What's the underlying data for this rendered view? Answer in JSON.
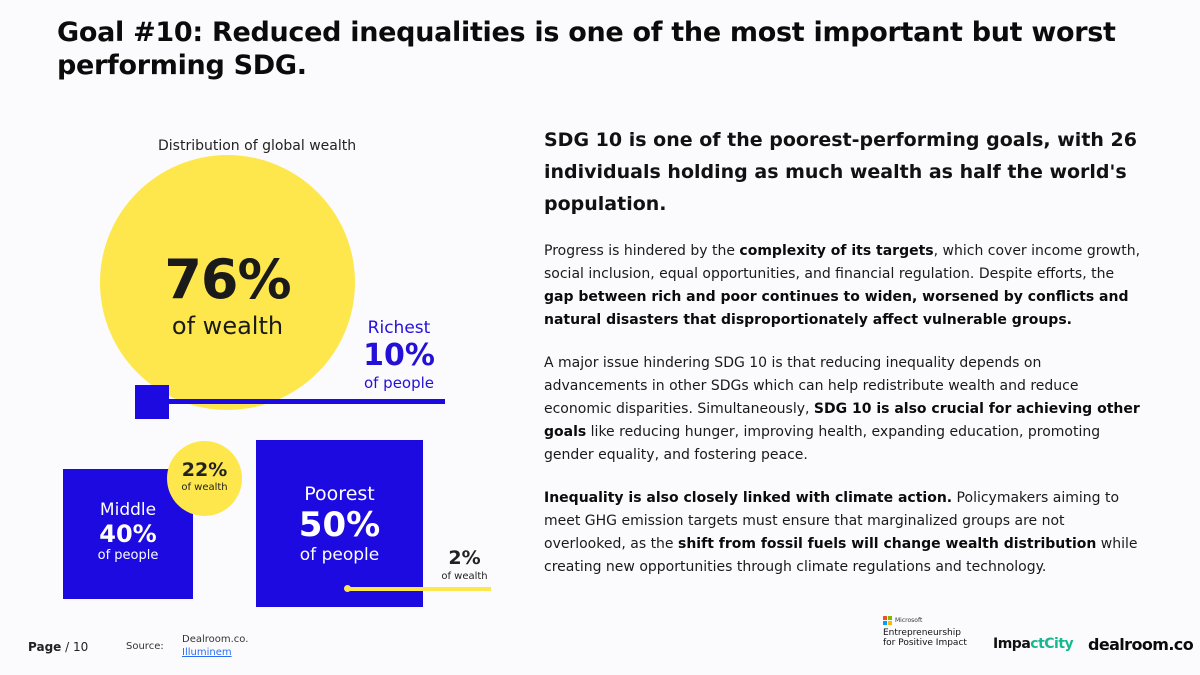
{
  "title": "Goal #10: Reduced inequalities is one of the most important but worst performing SDG.",
  "chart_data": {
    "type": "bubble-proportion",
    "title": "Distribution of global wealth",
    "groups": [
      {
        "name": "Richest",
        "people_pct": "10%",
        "people_label": "of people",
        "wealth_pct": "76%",
        "wealth_label": "of wealth"
      },
      {
        "name": "Middle",
        "people_pct": "40%",
        "people_label": "of people",
        "wealth_pct": "22%",
        "wealth_label": "of wealth"
      },
      {
        "name": "Poorest",
        "people_pct": "50%",
        "people_label": "of people",
        "wealth_pct": "2%",
        "wealth_label": "of wealth"
      }
    ],
    "colors": {
      "people": "#1c0ae0",
      "wealth": "#fde74c"
    }
  },
  "right": {
    "headline": "SDG 10 is one of the poorest-performing goals, with 26 individuals holding as much wealth as half the world's population.",
    "p1": {
      "a": "Progress is hindered by the ",
      "b": "complexity of its targets",
      "c": ", which cover income growth, social inclusion, equal opportunities, and financial regulation. Despite efforts, the ",
      "d": "gap between rich and poor continues to widen, worsened by conflicts and natural disasters that disproportionately affect vulnerable groups."
    },
    "p2": {
      "a": "A major issue hindering SDG 10 is that reducing inequality depends on advancements in other SDGs which can help redistribute wealth and reduce economic disparities. Simultaneously, ",
      "b": "SDG 10 is also crucial for achieving other goals",
      "c": " like reducing hunger, improving health, expanding education, promoting gender equality, and fostering peace."
    },
    "p3": {
      "a": "Inequality is also closely linked with climate action.",
      "b": " Policymakers aiming to meet GHG emission targets must ensure that marginalized groups are not overlooked, as the ",
      "c": "shift from fossil fuels will change wealth distribution",
      "d": " while creating new opportunities through climate regulations and technology."
    }
  },
  "footer": {
    "page_label": "Page",
    "page_suffix": "/ 10",
    "source_label": "Source:",
    "sources": [
      "Dealroom.co.",
      "Illuminem"
    ],
    "logos": {
      "microsoft": "Microsoft",
      "entrepreneurship_l1": "Entrepreneurship",
      "entrepreneurship_l2": "for Positive Impact",
      "impact_a": "Impa",
      "impact_b": "ct",
      "impact_c": "City",
      "dealroom": "dealroom.co"
    }
  }
}
